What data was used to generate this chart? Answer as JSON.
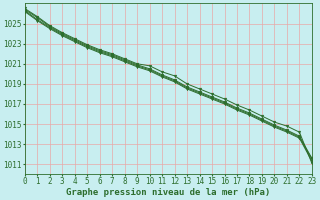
{
  "title": "Graphe pression niveau de la mer (hPa)",
  "background_color": "#c8eef0",
  "plot_bg_color": "#c8eef0",
  "grid_color": "#e8a8a8",
  "line_color": "#2d6e2d",
  "marker_color": "#2d6e2d",
  "x_ticks": [
    0,
    1,
    2,
    3,
    4,
    5,
    6,
    7,
    8,
    9,
    10,
    11,
    12,
    13,
    14,
    15,
    16,
    17,
    18,
    19,
    20,
    21,
    22,
    23
  ],
  "y_ticks": [
    1011,
    1013,
    1015,
    1017,
    1019,
    1021,
    1023,
    1025
  ],
  "ylim": [
    1010.0,
    1027.0
  ],
  "xlim": [
    0,
    23
  ],
  "series": [
    [
      1026.5,
      1025.7,
      1024.8,
      1024.1,
      1023.5,
      1022.9,
      1022.4,
      1022.0,
      1021.5,
      1021.0,
      1020.8,
      1020.2,
      1019.8,
      1019.0,
      1018.5,
      1018.0,
      1017.5,
      1016.9,
      1016.4,
      1015.8,
      1015.2,
      1014.8,
      1014.2,
      1011.1
    ],
    [
      1026.2,
      1025.3,
      1024.5,
      1023.8,
      1023.2,
      1022.6,
      1022.1,
      1021.7,
      1021.2,
      1020.7,
      1020.3,
      1019.7,
      1019.2,
      1018.5,
      1018.0,
      1017.5,
      1017.0,
      1016.4,
      1015.9,
      1015.3,
      1014.7,
      1014.2,
      1013.6,
      1011.3
    ],
    [
      1026.3,
      1025.4,
      1024.6,
      1023.9,
      1023.3,
      1022.7,
      1022.2,
      1021.8,
      1021.3,
      1020.8,
      1020.4,
      1019.8,
      1019.3,
      1018.6,
      1018.1,
      1017.6,
      1017.1,
      1016.5,
      1016.0,
      1015.4,
      1014.8,
      1014.3,
      1013.7,
      1011.5
    ],
    [
      1026.4,
      1025.6,
      1024.7,
      1024.0,
      1023.4,
      1022.8,
      1022.3,
      1021.9,
      1021.4,
      1020.9,
      1020.5,
      1019.9,
      1019.4,
      1018.7,
      1018.2,
      1017.7,
      1017.2,
      1016.6,
      1016.1,
      1015.5,
      1014.9,
      1014.4,
      1013.8,
      1011.6
    ]
  ],
  "title_fontsize": 6.5,
  "tick_fontsize": 5.5
}
